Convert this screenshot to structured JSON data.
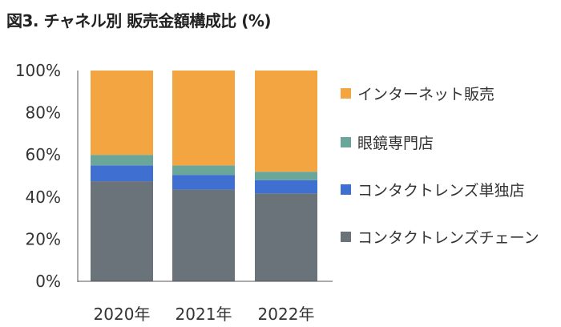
{
  "title": "図3. チャネル別 販売金額構成比 (%)",
  "colors": {
    "chain": "#6b737a",
    "single_store": "#3f6fd0",
    "optical": "#6aa69a",
    "internet": "#f2a541",
    "axis": "#555555"
  },
  "chart_data": {
    "type": "bar",
    "stacked": true,
    "categories": [
      "2020年",
      "2021年",
      "2022年"
    ],
    "y_ticks": [
      "0%",
      "20%",
      "40%",
      "60%",
      "80%",
      "100%"
    ],
    "ylim": [
      0,
      100
    ],
    "legend_position": "right",
    "series": [
      {
        "name": "コンタクトレンズチェーン",
        "color_key": "chain",
        "values": [
          47.5,
          43.5,
          41.7
        ]
      },
      {
        "name": "コンタクトレンズ単独店",
        "color_key": "single_store",
        "values": [
          7.5,
          7.0,
          6.3
        ]
      },
      {
        "name": "眼鏡専門店",
        "color_key": "optical",
        "values": [
          5.0,
          4.5,
          4.0
        ]
      },
      {
        "name": "インターネット販売",
        "color_key": "internet",
        "values": [
          40.0,
          45.0,
          48.0
        ]
      }
    ],
    "legend_order": [
      3,
      2,
      1,
      0
    ]
  }
}
